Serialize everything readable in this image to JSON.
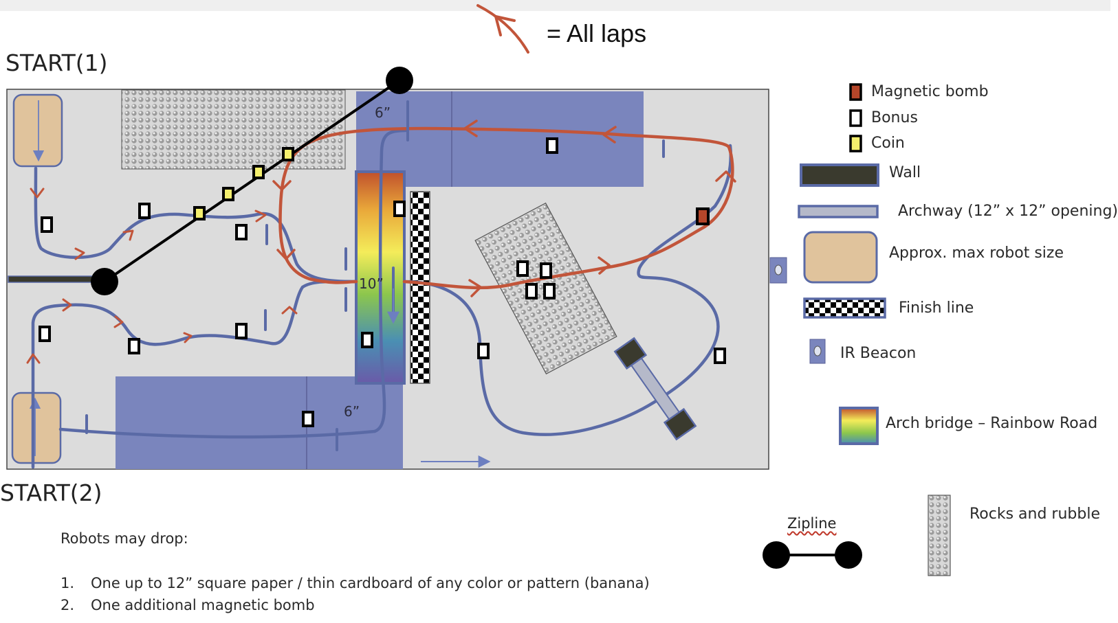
{
  "header": {
    "arrow_legend_label": "= All laps",
    "arrow_icon": "red-curved-arrow-icon"
  },
  "course": {
    "start1_label": "START(1)",
    "start2_label": "START(2)",
    "dimension_labels": {
      "top_ramp": "6”",
      "bottom_ramp": "6”",
      "bridge_height": "10”"
    },
    "colors": {
      "field": "#dcdcdc",
      "ramp": "#7a85bd",
      "path": "#5a6aa6",
      "lap_arrow": "#c2553a",
      "robot": "#e0c39c",
      "bonus": "#ffffff",
      "coin": "#f4ef6e",
      "bomb": "#b5462a",
      "wall": "#3a3a2e"
    }
  },
  "legend": {
    "items": [
      {
        "icon": "magnetic-bomb-icon",
        "label": "Magnetic bomb"
      },
      {
        "icon": "bonus-icon",
        "label": "Bonus"
      },
      {
        "icon": "coin-icon",
        "label": "Coin"
      },
      {
        "icon": "wall-icon",
        "label": "Wall"
      },
      {
        "icon": "archway-icon",
        "label": "Archway (12” x 12” opening)"
      },
      {
        "icon": "robot-size-icon",
        "label": "Approx. max robot size"
      },
      {
        "icon": "finish-line-icon",
        "label": "Finish line"
      },
      {
        "icon": "ir-beacon-icon",
        "label": "IR Beacon"
      },
      {
        "icon": "arch-bridge-icon",
        "label": "Arch bridge – Rainbow Road"
      },
      {
        "icon": "zipline-icon",
        "label": "Zipline"
      },
      {
        "icon": "rocks-icon",
        "label": "Rocks and rubble"
      }
    ]
  },
  "notes": {
    "heading": "Robots may drop:",
    "items": [
      {
        "number": "1.",
        "text": "One up to 12” square paper / thin cardboard of any color or pattern (banana)"
      },
      {
        "number": "2.",
        "text": "One additional magnetic bomb"
      }
    ]
  }
}
